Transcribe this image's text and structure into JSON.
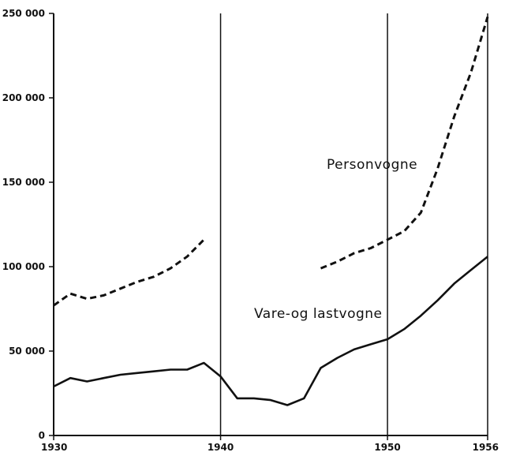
{
  "chart_data": {
    "type": "line",
    "title": "",
    "xlabel": "",
    "ylabel": "",
    "xlim": [
      1930,
      1956
    ],
    "ylim": [
      0,
      250000
    ],
    "x_ticks": [
      {
        "value": 1930,
        "label": "1930"
      },
      {
        "value": 1940,
        "label": "1940"
      },
      {
        "value": 1950,
        "label": "1950"
      },
      {
        "value": 1956,
        "label": "1956"
      }
    ],
    "y_ticks": [
      {
        "value": 0,
        "label": "0"
      },
      {
        "value": 50000,
        "label": "50 000"
      },
      {
        "value": 100000,
        "label": "100 000"
      },
      {
        "value": 150000,
        "label": "150 000"
      },
      {
        "value": 200000,
        "label": "200 000"
      },
      {
        "value": 250000,
        "label": "250 000"
      }
    ],
    "grid": {
      "vertical_lines_at": [
        1930,
        1940,
        1950,
        1956
      ],
      "horizontal": false
    },
    "legend": "none (series labelled inline)",
    "series": [
      {
        "name": "Personvogne",
        "style": "dashed",
        "color": "#111111",
        "segments": [
          [
            [
              1930,
              77000
            ],
            [
              1931,
              84000
            ],
            [
              1932,
              81000
            ],
            [
              1933,
              83000
            ],
            [
              1934,
              87000
            ],
            [
              1935,
              91000
            ],
            [
              1936,
              94000
            ],
            [
              1937,
              99000
            ],
            [
              1938,
              106000
            ],
            [
              1939,
              116000
            ]
          ],
          [
            [
              1946,
              99000
            ],
            [
              1947,
              103000
            ],
            [
              1948,
              108000
            ],
            [
              1949,
              111000
            ],
            [
              1950,
              116000
            ],
            [
              1951,
              121000
            ],
            [
              1952,
              132000
            ],
            [
              1953,
              158000
            ],
            [
              1954,
              189000
            ],
            [
              1955,
              215000
            ],
            [
              1956,
              248000
            ]
          ]
        ]
      },
      {
        "name": "Vare-og lastvogne",
        "style": "solid",
        "color": "#111111",
        "segments": [
          [
            [
              1930,
              29000
            ],
            [
              1931,
              34000
            ],
            [
              1932,
              32000
            ],
            [
              1933,
              34000
            ],
            [
              1934,
              36000
            ],
            [
              1935,
              37000
            ],
            [
              1936,
              38000
            ],
            [
              1937,
              39000
            ],
            [
              1938,
              39000
            ],
            [
              1939,
              43000
            ],
            [
              1940,
              35000
            ],
            [
              1941,
              22000
            ],
            [
              1942,
              22000
            ],
            [
              1943,
              21000
            ],
            [
              1944,
              18000
            ],
            [
              1945,
              22000
            ],
            [
              1946,
              40000
            ],
            [
              1947,
              46000
            ],
            [
              1948,
              51000
            ],
            [
              1949,
              54000
            ],
            [
              1950,
              57000
            ],
            [
              1951,
              63000
            ],
            [
              1952,
              71000
            ],
            [
              1953,
              80000
            ],
            [
              1954,
              90000
            ],
            [
              1955,
              98000
            ],
            [
              1956,
              106000
            ]
          ]
        ]
      }
    ]
  }
}
